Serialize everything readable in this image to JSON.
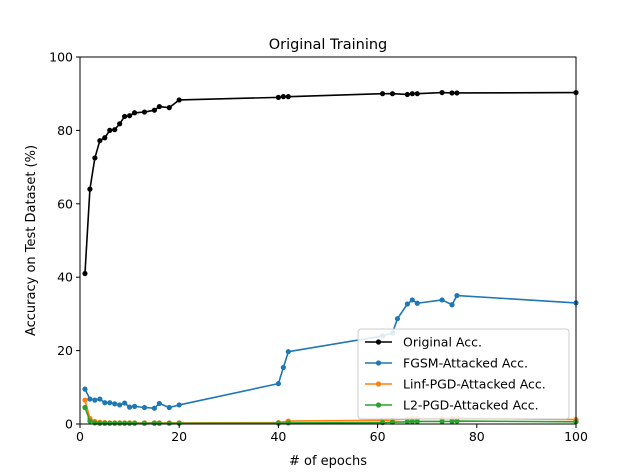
{
  "chart_data": {
    "type": "line",
    "title": "Original Training",
    "xlabel": "# of epochs",
    "ylabel": "Accuracy on Test Dataset (%)",
    "xlim": [
      0,
      100
    ],
    "ylim": [
      0,
      100
    ],
    "xticks": [
      0,
      20,
      40,
      60,
      80,
      100
    ],
    "yticks": [
      0,
      20,
      40,
      60,
      80,
      100
    ],
    "grid": false,
    "legend_position": "bottom-right",
    "series": [
      {
        "name": "Original Acc.",
        "color": "#000000",
        "points": [
          [
            1,
            41
          ],
          [
            2,
            64
          ],
          [
            3,
            72.5
          ],
          [
            4,
            77.2
          ],
          [
            5,
            78
          ],
          [
            6,
            80
          ],
          [
            7,
            80.2
          ],
          [
            8,
            81.8
          ],
          [
            9,
            83.8
          ],
          [
            10,
            84
          ],
          [
            11,
            84.8
          ],
          [
            13,
            85
          ],
          [
            15,
            85.5
          ],
          [
            16,
            86.5
          ],
          [
            18,
            86.2
          ],
          [
            20,
            88.3
          ],
          [
            40,
            89
          ],
          [
            41,
            89.2
          ],
          [
            42,
            89.2
          ],
          [
            61,
            90
          ],
          [
            63,
            90
          ],
          [
            66,
            89.8
          ],
          [
            67,
            90
          ],
          [
            68,
            90
          ],
          [
            73,
            90.3
          ],
          [
            75,
            90.2
          ],
          [
            76,
            90.2
          ],
          [
            100,
            90.3
          ]
        ]
      },
      {
        "name": "FGSM-Attacked Acc.",
        "color": "#1f77b4",
        "points": [
          [
            1,
            9.5
          ],
          [
            2,
            6.8
          ],
          [
            3,
            6.5
          ],
          [
            4,
            6.8
          ],
          [
            5,
            5.8
          ],
          [
            6,
            5.8
          ],
          [
            7,
            5.5
          ],
          [
            8,
            5.2
          ],
          [
            9,
            5.7
          ],
          [
            10,
            4.6
          ],
          [
            11,
            4.8
          ],
          [
            13,
            4.5
          ],
          [
            15,
            4.3
          ],
          [
            16,
            5.6
          ],
          [
            18,
            4.5
          ],
          [
            20,
            5.2
          ],
          [
            40,
            11
          ],
          [
            41,
            15.4
          ],
          [
            42,
            19.7
          ],
          [
            61,
            24
          ],
          [
            63,
            24.8
          ],
          [
            64,
            28.7
          ],
          [
            66,
            32.7
          ],
          [
            67,
            33.8
          ],
          [
            68,
            32.9
          ],
          [
            73,
            33.8
          ],
          [
            75,
            32.5
          ],
          [
            76,
            35
          ],
          [
            100,
            33
          ]
        ]
      },
      {
        "name": "Linf-PGD-Attacked Acc.",
        "color": "#ff7f0e",
        "points": [
          [
            1,
            6.5
          ],
          [
            2,
            1.5
          ],
          [
            3,
            0.7
          ],
          [
            4,
            0.5
          ],
          [
            5,
            0.4
          ],
          [
            6,
            0.3
          ],
          [
            7,
            0.3
          ],
          [
            8,
            0.3
          ],
          [
            9,
            0.3
          ],
          [
            10,
            0.3
          ],
          [
            11,
            0.3
          ],
          [
            13,
            0.3
          ],
          [
            15,
            0.3
          ],
          [
            16,
            0.3
          ],
          [
            18,
            0.3
          ],
          [
            20,
            0.3
          ],
          [
            40,
            0.4
          ],
          [
            42,
            0.8
          ],
          [
            61,
            1
          ],
          [
            63,
            1.1
          ],
          [
            66,
            1.4
          ],
          [
            67,
            1.5
          ],
          [
            68,
            1.5
          ],
          [
            73,
            1.5
          ],
          [
            75,
            1.5
          ],
          [
            76,
            1.6
          ],
          [
            100,
            1.2
          ]
        ]
      },
      {
        "name": "L2-PGD-Attacked Acc.",
        "color": "#2ca02c",
        "points": [
          [
            1,
            4.5
          ],
          [
            2,
            0.8
          ],
          [
            3,
            0.3
          ],
          [
            4,
            0.2
          ],
          [
            5,
            0.2
          ],
          [
            6,
            0.2
          ],
          [
            7,
            0.2
          ],
          [
            8,
            0.2
          ],
          [
            9,
            0.2
          ],
          [
            10,
            0.2
          ],
          [
            11,
            0.2
          ],
          [
            13,
            0.2
          ],
          [
            15,
            0.2
          ],
          [
            16,
            0.2
          ],
          [
            18,
            0.2
          ],
          [
            20,
            0.2
          ],
          [
            40,
            0.2
          ],
          [
            42,
            0.3
          ],
          [
            61,
            0.4
          ],
          [
            63,
            0.5
          ],
          [
            66,
            0.6
          ],
          [
            67,
            0.7
          ],
          [
            68,
            0.7
          ],
          [
            73,
            0.7
          ],
          [
            75,
            0.7
          ],
          [
            76,
            0.8
          ],
          [
            100,
            0.6
          ]
        ]
      }
    ]
  }
}
